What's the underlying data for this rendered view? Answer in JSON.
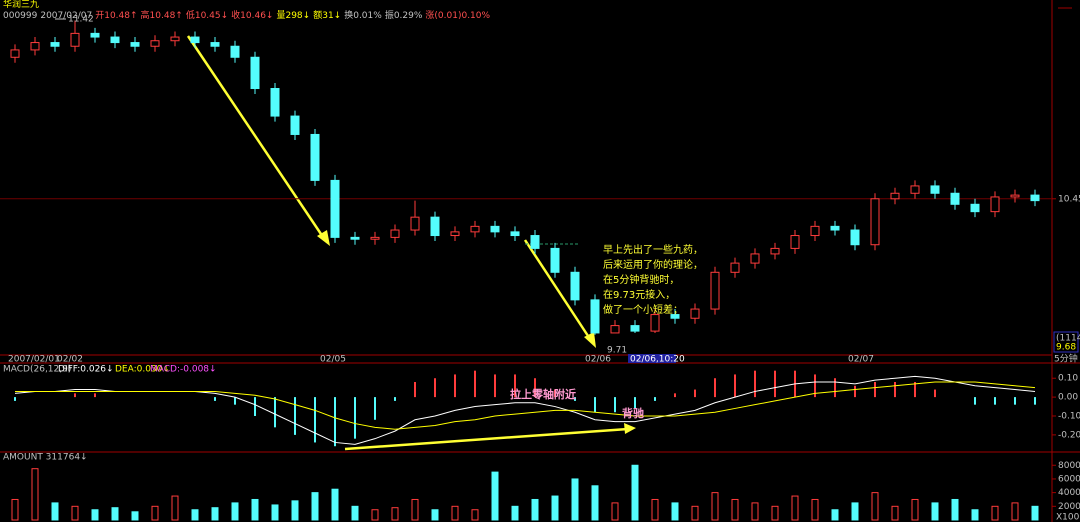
{
  "header": {
    "name": "华润三九",
    "info": [
      "000999",
      "2007/02/07",
      "开10.48↑",
      "高10.48↑",
      "低10.45↓",
      "收10.46↓",
      "量298↓",
      "额31↓",
      "换0.01%",
      "振0.29%",
      "涨(0.01)0.10%"
    ]
  },
  "chart_data": [
    {
      "type": "candlestick",
      "up_color": "#ff3c3c",
      "down_color": "#54fcfc",
      "ylim": [
        9.6,
        11.45
      ],
      "yticks": [
        10.45
      ],
      "open": [
        11.22,
        11.26,
        11.3,
        11.28,
        11.35,
        11.33,
        11.3,
        11.28,
        11.31,
        11.33,
        11.3,
        11.28,
        11.22,
        11.05,
        10.9,
        10.8,
        10.55,
        10.24,
        10.23,
        10.24,
        10.28,
        10.35,
        10.25,
        10.27,
        10.3,
        10.27,
        10.25,
        10.18,
        10.05,
        9.9,
        9.72,
        9.76,
        9.73,
        9.82,
        9.8,
        9.85,
        10.05,
        10.1,
        10.15,
        10.18,
        10.25,
        10.3,
        10.28,
        10.2,
        10.45,
        10.48,
        10.52,
        10.48,
        10.42,
        10.38,
        10.46,
        10.47
      ],
      "high": [
        11.29,
        11.33,
        11.33,
        11.42,
        11.38,
        11.36,
        11.33,
        11.34,
        11.36,
        11.36,
        11.33,
        11.31,
        11.25,
        11.08,
        10.93,
        10.83,
        10.58,
        10.27,
        10.27,
        10.31,
        10.44,
        10.38,
        10.3,
        10.33,
        10.33,
        10.3,
        10.28,
        10.21,
        10.08,
        9.93,
        9.79,
        9.79,
        9.85,
        9.85,
        9.88,
        10.08,
        10.13,
        10.18,
        10.21,
        10.28,
        10.33,
        10.33,
        10.31,
        10.48,
        10.51,
        10.55,
        10.55,
        10.51,
        10.45,
        10.49,
        10.5,
        10.5
      ],
      "low": [
        11.19,
        11.23,
        11.25,
        11.25,
        11.3,
        11.27,
        11.25,
        11.25,
        11.28,
        11.27,
        11.25,
        11.19,
        11.02,
        10.87,
        10.77,
        10.52,
        10.21,
        10.2,
        10.2,
        10.21,
        10.25,
        10.22,
        10.22,
        10.24,
        10.24,
        10.22,
        10.15,
        10.02,
        9.87,
        9.71,
        9.72,
        9.72,
        9.72,
        9.77,
        9.77,
        9.82,
        10.02,
        10.07,
        10.12,
        10.15,
        10.22,
        10.25,
        10.17,
        10.17,
        10.42,
        10.45,
        10.45,
        10.39,
        10.35,
        10.35,
        10.43,
        10.41
      ],
      "close": [
        11.26,
        11.3,
        11.28,
        11.35,
        11.33,
        11.3,
        11.28,
        11.31,
        11.33,
        11.3,
        11.28,
        11.22,
        11.05,
        10.9,
        10.8,
        10.55,
        10.24,
        10.23,
        10.24,
        10.28,
        10.35,
        10.25,
        10.27,
        10.3,
        10.27,
        10.25,
        10.18,
        10.05,
        9.9,
        9.72,
        9.76,
        9.73,
        9.82,
        9.8,
        9.85,
        10.05,
        10.1,
        10.15,
        10.18,
        10.25,
        10.3,
        10.28,
        10.2,
        10.45,
        10.48,
        10.52,
        10.48,
        10.42,
        10.38,
        10.46,
        10.47,
        10.44
      ],
      "annotations": [
        "11.42",
        "9.71"
      ],
      "x_labels": [
        "2007/02/01",
        "02/02",
        "02/05",
        "02/06",
        "02/07"
      ],
      "cursor_label": "02/06,10:20",
      "period": "5分钟",
      "side_box": [
        "(1114)",
        "9.68"
      ],
      "note": [
        "早上先出了一些九药，",
        "后来运用了你的理论，",
        "在5分钟背驰时，",
        "在9.73元接入，",
        "做了一个小短差；"
      ]
    },
    {
      "type": "macd",
      "title": [
        "MACD(26,12,9)",
        "DIFF:0.026↓",
        "DEA:0.030↓",
        "MACD:-0.008↓"
      ],
      "ylim": [
        -0.28,
        0.17
      ],
      "yticks": [
        {
          "value": 0.1,
          "label": "0.10"
        },
        {
          "value": 0,
          "label": "0.00"
        },
        {
          "value": -0.1,
          "label": "-0.10"
        },
        {
          "value": -0.2,
          "label": "-0.20"
        }
      ],
      "series": [
        {
          "name": "DIFF",
          "color": "#ffffff",
          "values": [
            0.02,
            0.03,
            0.03,
            0.04,
            0.04,
            0.03,
            0.03,
            0.03,
            0.03,
            0.03,
            0.02,
            0.0,
            -0.04,
            -0.09,
            -0.14,
            -0.19,
            -0.24,
            -0.25,
            -0.22,
            -0.18,
            -0.12,
            -0.1,
            -0.07,
            -0.05,
            -0.04,
            -0.03,
            -0.03,
            -0.05,
            -0.08,
            -0.12,
            -0.13,
            -0.13,
            -0.11,
            -0.09,
            -0.07,
            -0.03,
            0.0,
            0.03,
            0.05,
            0.07,
            0.08,
            0.08,
            0.07,
            0.09,
            0.1,
            0.11,
            0.1,
            0.08,
            0.06,
            0.05,
            0.04,
            0.03
          ]
        },
        {
          "name": "DEA",
          "color": "#ffff00",
          "values": [
            0.03,
            0.03,
            0.03,
            0.03,
            0.03,
            0.03,
            0.03,
            0.03,
            0.03,
            0.03,
            0.03,
            0.02,
            0.01,
            -0.01,
            -0.04,
            -0.07,
            -0.11,
            -0.14,
            -0.16,
            -0.17,
            -0.16,
            -0.15,
            -0.13,
            -0.12,
            -0.1,
            -0.09,
            -0.08,
            -0.07,
            -0.07,
            -0.08,
            -0.09,
            -0.1,
            -0.1,
            -0.1,
            -0.09,
            -0.08,
            -0.06,
            -0.04,
            -0.02,
            0.0,
            0.02,
            0.03,
            0.04,
            0.05,
            0.06,
            0.07,
            0.08,
            0.08,
            0.08,
            0.07,
            0.06,
            0.05
          ]
        }
      ],
      "histogram": [
        -0.02,
        0,
        0,
        0.02,
        0.02,
        0,
        0,
        0,
        0,
        0,
        -0.02,
        -0.04,
        -0.1,
        -0.16,
        -0.2,
        -0.24,
        -0.26,
        -0.22,
        -0.12,
        -0.02,
        0.08,
        0.1,
        0.12,
        0.14,
        0.12,
        0.12,
        0.1,
        0.04,
        -0.02,
        -0.08,
        -0.08,
        -0.06,
        -0.02,
        0.02,
        0.04,
        0.1,
        0.12,
        0.14,
        0.14,
        0.14,
        0.12,
        0.1,
        0.06,
        0.08,
        0.08,
        0.08,
        0.04,
        0,
        -0.04,
        -0.04,
        -0.04,
        -0.04
      ],
      "up_color": "#ff3c3c",
      "down_color": "#54fcfc",
      "annotations": [
        "拉上零轴附近",
        "背驰"
      ]
    },
    {
      "type": "bar",
      "title": "AMOUNT 311764↓",
      "ylim": [
        0,
        95000
      ],
      "yticks": [
        20000,
        40000,
        60000,
        80000
      ],
      "values": [
        30000,
        75000,
        25000,
        20000,
        15000,
        18000,
        12000,
        20000,
        35000,
        15000,
        18000,
        25000,
        30000,
        22000,
        28000,
        40000,
        45000,
        20000,
        15000,
        18000,
        30000,
        15000,
        20000,
        15000,
        70000,
        20000,
        30000,
        35000,
        60000,
        50000,
        25000,
        80000,
        30000,
        25000,
        20000,
        40000,
        30000,
        25000,
        20000,
        35000,
        30000,
        15000,
        25000,
        40000,
        20000,
        30000,
        25000,
        30000,
        15000,
        20000,
        25000,
        20000
      ],
      "unit": "X100"
    }
  ]
}
